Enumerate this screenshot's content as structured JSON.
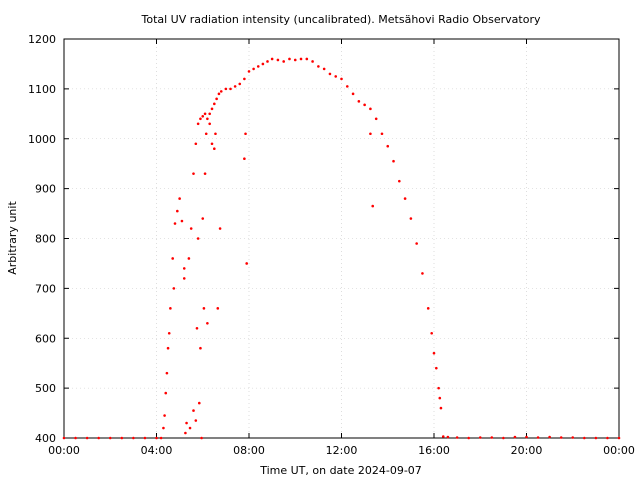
{
  "chart_data": {
    "type": "scatter",
    "title": "Total UV radiation intensity (uncalibrated). Metsähovi Radio Observatory",
    "xlabel": "Time UT, on date 2024-09-07",
    "ylabel": "Arbitrary unit",
    "xlim": [
      0,
      24
    ],
    "ylim": [
      400,
      1200
    ],
    "x_ticks": [
      0,
      4,
      8,
      12,
      16,
      20,
      24
    ],
    "x_tick_labels": [
      "00:00",
      "04:00",
      "08:00",
      "12:00",
      "16:00",
      "20:00",
      "00:00"
    ],
    "y_ticks": [
      400,
      500,
      600,
      700,
      800,
      900,
      1000,
      1100,
      1200
    ],
    "y_tick_labels": [
      "400",
      "500",
      "600",
      "700",
      "800",
      "900",
      "1000",
      "1100",
      "1200"
    ],
    "grid": true,
    "legend": "none",
    "marker_color": "#ff0000",
    "series": [
      {
        "x": [
          0.0,
          0.5,
          1.0,
          1.5,
          2.0,
          2.5,
          3.0,
          3.5,
          4.0,
          4.2,
          4.3,
          4.35,
          4.4,
          4.5,
          4.6,
          4.7,
          4.8,
          4.9,
          5.0,
          5.1,
          5.2,
          5.3,
          5.4,
          5.5,
          5.6,
          5.7,
          5.8,
          5.9,
          6.0,
          6.1,
          6.2,
          6.3,
          6.4,
          6.5,
          6.6,
          6.7,
          6.8,
          7.0,
          7.2,
          7.4,
          7.6,
          7.8,
          8.0,
          8.2,
          8.4,
          8.6,
          8.8,
          9.0,
          9.25,
          9.5,
          9.75,
          10.0,
          10.25,
          10.5,
          10.75,
          11.0,
          11.25,
          11.5,
          11.75,
          12.0,
          12.25,
          12.5,
          12.75,
          13.0,
          13.25,
          13.5,
          13.75,
          14.0,
          14.25,
          14.5,
          14.75,
          15.0,
          15.25,
          15.5,
          15.75,
          15.9,
          16.0,
          16.1,
          16.2,
          16.25,
          16.3,
          16.4,
          16.6,
          17.0,
          17.5,
          18.0,
          18.5,
          19.0,
          19.5,
          20.0,
          20.5,
          21.0,
          21.5,
          22.0,
          22.5,
          23.0,
          23.5,
          24.0
        ],
        "y": [
          400,
          400,
          400,
          400,
          400,
          400,
          400,
          400,
          400,
          400,
          420,
          445,
          490,
          580,
          660,
          760,
          830,
          855,
          880,
          835,
          740,
          430,
          760,
          820,
          930,
          990,
          1030,
          1040,
          1045,
          1050,
          1040,
          1050,
          1060,
          1070,
          1080,
          1090,
          1095,
          1100,
          1100,
          1105,
          1110,
          1120,
          1135,
          1140,
          1145,
          1150,
          1155,
          1160,
          1158,
          1155,
          1160,
          1158,
          1160,
          1160,
          1155,
          1145,
          1140,
          1130,
          1125,
          1120,
          1105,
          1090,
          1075,
          1068,
          1060,
          1040,
          1010,
          985,
          955,
          915,
          880,
          840,
          790,
          730,
          660,
          610,
          570,
          540,
          500,
          480,
          460,
          403,
          402,
          401,
          400,
          401,
          401,
          400,
          402,
          402,
          401,
          402,
          401,
          401,
          400,
          400,
          400,
          400
        ]
      },
      {
        "x": [
          4.45,
          4.55,
          4.75,
          5.2,
          5.25,
          5.45,
          5.6,
          5.7,
          5.75,
          5.8,
          5.85,
          5.9,
          5.95,
          6.0,
          6.05,
          6.1,
          6.15,
          6.2,
          6.3,
          6.4,
          6.5,
          6.55,
          6.65,
          6.75,
          7.8,
          7.85,
          7.9,
          13.25,
          13.35
        ],
        "y": [
          530,
          610,
          700,
          720,
          410,
          420,
          455,
          435,
          620,
          800,
          470,
          580,
          400,
          840,
          660,
          930,
          1010,
          630,
          1030,
          990,
          980,
          1010,
          660,
          820,
          960,
          1010,
          750,
          1010,
          865
        ]
      }
    ]
  }
}
